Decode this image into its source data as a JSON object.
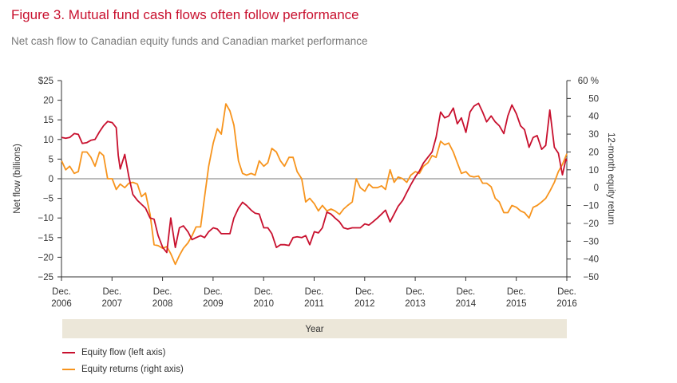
{
  "figure": {
    "title": "Figure 3. Mutual fund cash flows often follow performance",
    "subtitle": "Net cash flow to Canadian equity funds and Canadian market performance"
  },
  "colors": {
    "flow": "#c8102e",
    "returns": "#f7941d",
    "band": "#ece7d9",
    "axis": "#333333"
  },
  "chart_data": {
    "type": "line",
    "title": "Figure 3. Mutual fund cash flows often follow performance",
    "subtitle": "Net cash flow to Canadian equity funds and Canadian market performance",
    "xlabel": "Year",
    "ylabel": "Net flow (billions)",
    "y2label": "12-month equity return",
    "xlim": [
      2006.917,
      2016.917
    ],
    "ylim": [
      -25,
      25
    ],
    "y2lim": [
      -50,
      60
    ],
    "left_ticks": [
      -25,
      -20,
      -15,
      -10,
      -5,
      0,
      5,
      10,
      15,
      20,
      25
    ],
    "left_tick_labels": [
      "−25",
      "−20",
      "−15",
      "−10",
      "−5",
      "0",
      "5",
      "10",
      "15",
      "20",
      "$25"
    ],
    "right_ticks": [
      -50,
      -40,
      -30,
      -20,
      -10,
      0,
      10,
      20,
      30,
      40,
      50,
      60
    ],
    "right_tick_labels": [
      "−50",
      "−40",
      "−30",
      "−20",
      "−10",
      "0",
      "10",
      "20",
      "30",
      "40",
      "50",
      "60 %"
    ],
    "x_tick_labels": [
      {
        "month": "Dec.",
        "year": "2006"
      },
      {
        "month": "Dec.",
        "year": "2007"
      },
      {
        "month": "Dec.",
        "year": "2008"
      },
      {
        "month": "Dec.",
        "year": "2009"
      },
      {
        "month": "Dec.",
        "year": "2010"
      },
      {
        "month": "Dec.",
        "year": "2011"
      },
      {
        "month": "Dec.",
        "year": "2012"
      },
      {
        "month": "Dec.",
        "year": "2013"
      },
      {
        "month": "Dec.",
        "year": "2014"
      },
      {
        "month": "Dec.",
        "year": "2015"
      },
      {
        "month": "Dec.",
        "year": "2016"
      }
    ],
    "legend_position": "bottom-left",
    "series": [
      {
        "name": "Equity flow (left axis)",
        "axis": "left",
        "points": [
          [
            2006.92,
            10.5
          ],
          [
            2007.0,
            10.3
          ],
          [
            2007.08,
            10.5
          ],
          [
            2007.17,
            11.5
          ],
          [
            2007.25,
            11.3
          ],
          [
            2007.33,
            9.0
          ],
          [
            2007.42,
            9.2
          ],
          [
            2007.5,
            9.8
          ],
          [
            2007.58,
            10.0
          ],
          [
            2007.67,
            12.0
          ],
          [
            2007.75,
            13.5
          ],
          [
            2007.83,
            14.6
          ],
          [
            2007.92,
            14.3
          ],
          [
            2008.0,
            13.0
          ],
          [
            2008.04,
            6.0
          ],
          [
            2008.08,
            2.5
          ],
          [
            2008.17,
            6.2
          ],
          [
            2008.25,
            0.5
          ],
          [
            2008.33,
            -4.0
          ],
          [
            2008.42,
            -5.5
          ],
          [
            2008.5,
            -6.5
          ],
          [
            2008.58,
            -7.5
          ],
          [
            2008.67,
            -10.0
          ],
          [
            2008.75,
            -10.3
          ],
          [
            2008.83,
            -14.5
          ],
          [
            2008.92,
            -17.5
          ],
          [
            2009.0,
            -18.8
          ],
          [
            2009.08,
            -10.0
          ],
          [
            2009.17,
            -17.5
          ],
          [
            2009.25,
            -12.5
          ],
          [
            2009.33,
            -12.0
          ],
          [
            2009.42,
            -13.5
          ],
          [
            2009.5,
            -15.5
          ],
          [
            2009.58,
            -15.0
          ],
          [
            2009.67,
            -14.5
          ],
          [
            2009.75,
            -15.0
          ],
          [
            2009.83,
            -13.5
          ],
          [
            2009.92,
            -12.5
          ],
          [
            2010.0,
            -12.8
          ],
          [
            2010.08,
            -14.0
          ],
          [
            2010.17,
            -14.0
          ],
          [
            2010.25,
            -14.0
          ],
          [
            2010.33,
            -10.0
          ],
          [
            2010.42,
            -7.5
          ],
          [
            2010.5,
            -6.0
          ],
          [
            2010.58,
            -6.8
          ],
          [
            2010.67,
            -8.0
          ],
          [
            2010.75,
            -8.8
          ],
          [
            2010.83,
            -9.0
          ],
          [
            2010.92,
            -12.5
          ],
          [
            2011.0,
            -12.5
          ],
          [
            2011.08,
            -14.0
          ],
          [
            2011.17,
            -17.5
          ],
          [
            2011.25,
            -16.8
          ],
          [
            2011.33,
            -16.8
          ],
          [
            2011.42,
            -17.0
          ],
          [
            2011.5,
            -15.0
          ],
          [
            2011.58,
            -14.8
          ],
          [
            2011.67,
            -15.0
          ],
          [
            2011.75,
            -14.5
          ],
          [
            2011.83,
            -16.8
          ],
          [
            2011.92,
            -13.5
          ],
          [
            2012.0,
            -13.8
          ],
          [
            2012.08,
            -12.5
          ],
          [
            2012.17,
            -8.5
          ],
          [
            2012.25,
            -9.0
          ],
          [
            2012.33,
            -10.0
          ],
          [
            2012.42,
            -11.0
          ],
          [
            2012.5,
            -12.5
          ],
          [
            2012.58,
            -12.8
          ],
          [
            2012.67,
            -12.5
          ],
          [
            2012.75,
            -12.5
          ],
          [
            2012.83,
            -12.5
          ],
          [
            2012.92,
            -11.5
          ],
          [
            2013.0,
            -11.8
          ],
          [
            2013.08,
            -11.0
          ],
          [
            2013.17,
            -10.0
          ],
          [
            2013.25,
            -9.0
          ],
          [
            2013.33,
            -8.0
          ],
          [
            2013.42,
            -11.0
          ],
          [
            2013.5,
            -9.0
          ],
          [
            2013.58,
            -7.0
          ],
          [
            2013.67,
            -5.5
          ],
          [
            2013.75,
            -3.5
          ],
          [
            2013.83,
            -1.5
          ],
          [
            2013.92,
            0.5
          ],
          [
            2014.0,
            2.0
          ],
          [
            2014.08,
            4.0
          ],
          [
            2014.17,
            5.5
          ],
          [
            2014.25,
            6.8
          ],
          [
            2014.33,
            10.5
          ],
          [
            2014.42,
            17.0
          ],
          [
            2014.5,
            15.5
          ],
          [
            2014.58,
            16.0
          ],
          [
            2014.67,
            18.0
          ],
          [
            2014.75,
            14.0
          ],
          [
            2014.83,
            15.5
          ],
          [
            2014.92,
            11.8
          ],
          [
            2015.0,
            17.0
          ],
          [
            2015.08,
            18.5
          ],
          [
            2015.17,
            19.2
          ],
          [
            2015.25,
            17.0
          ],
          [
            2015.33,
            14.5
          ],
          [
            2015.42,
            16.0
          ],
          [
            2015.5,
            14.5
          ],
          [
            2015.58,
            13.5
          ],
          [
            2015.67,
            11.5
          ],
          [
            2015.75,
            16.0
          ],
          [
            2015.83,
            18.8
          ],
          [
            2015.92,
            16.5
          ],
          [
            2016.0,
            13.5
          ],
          [
            2016.08,
            12.5
          ],
          [
            2016.17,
            8.0
          ],
          [
            2016.25,
            10.5
          ],
          [
            2016.33,
            11.0
          ],
          [
            2016.42,
            7.5
          ],
          [
            2016.5,
            8.5
          ],
          [
            2016.58,
            17.5
          ],
          [
            2016.67,
            8.0
          ],
          [
            2016.75,
            6.5
          ],
          [
            2016.83,
            1.0
          ],
          [
            2016.9,
            5.0
          ],
          [
            2016.92,
            4.5
          ]
        ]
      },
      {
        "name": "Equity returns (right axis)",
        "axis": "right",
        "points": [
          [
            2006.92,
            15.0
          ],
          [
            2007.0,
            10.0
          ],
          [
            2007.08,
            12.0
          ],
          [
            2007.17,
            8.0
          ],
          [
            2007.25,
            9.0
          ],
          [
            2007.33,
            20.0
          ],
          [
            2007.42,
            20.0
          ],
          [
            2007.5,
            17.0
          ],
          [
            2007.58,
            12.0
          ],
          [
            2007.67,
            20.0
          ],
          [
            2007.75,
            18.0
          ],
          [
            2007.83,
            5.0
          ],
          [
            2007.92,
            5.0
          ],
          [
            2008.0,
            -1.0
          ],
          [
            2008.08,
            2.0
          ],
          [
            2008.17,
            0.0
          ],
          [
            2008.25,
            2.5
          ],
          [
            2008.33,
            3.0
          ],
          [
            2008.42,
            2.0
          ],
          [
            2008.5,
            -5.0
          ],
          [
            2008.58,
            -3.0
          ],
          [
            2008.67,
            -15.0
          ],
          [
            2008.75,
            -32.0
          ],
          [
            2008.83,
            -32.5
          ],
          [
            2008.92,
            -34.0
          ],
          [
            2009.0,
            -33.0
          ],
          [
            2009.08,
            -37.0
          ],
          [
            2009.17,
            -43.0
          ],
          [
            2009.25,
            -38.0
          ],
          [
            2009.33,
            -34.0
          ],
          [
            2009.42,
            -31.0
          ],
          [
            2009.5,
            -27.0
          ],
          [
            2009.58,
            -22.0
          ],
          [
            2009.67,
            -22.0
          ],
          [
            2009.75,
            -5.0
          ],
          [
            2009.83,
            12.0
          ],
          [
            2009.92,
            25.0
          ],
          [
            2010.0,
            33.0
          ],
          [
            2010.08,
            30.0
          ],
          [
            2010.17,
            47.0
          ],
          [
            2010.25,
            43.0
          ],
          [
            2010.33,
            35.0
          ],
          [
            2010.42,
            15.0
          ],
          [
            2010.5,
            8.0
          ],
          [
            2010.58,
            7.0
          ],
          [
            2010.67,
            8.0
          ],
          [
            2010.75,
            7.0
          ],
          [
            2010.83,
            15.0
          ],
          [
            2010.92,
            12.0
          ],
          [
            2011.0,
            14.0
          ],
          [
            2011.08,
            22.0
          ],
          [
            2011.17,
            20.0
          ],
          [
            2011.25,
            15.0
          ],
          [
            2011.33,
            12.0
          ],
          [
            2011.42,
            17.0
          ],
          [
            2011.5,
            17.0
          ],
          [
            2011.58,
            9.0
          ],
          [
            2011.67,
            5.0
          ],
          [
            2011.75,
            -8.0
          ],
          [
            2011.83,
            -6.0
          ],
          [
            2011.92,
            -9.0
          ],
          [
            2012.0,
            -13.0
          ],
          [
            2012.08,
            -10.0
          ],
          [
            2012.17,
            -13.0
          ],
          [
            2012.25,
            -12.0
          ],
          [
            2012.33,
            -13.0
          ],
          [
            2012.42,
            -15.0
          ],
          [
            2012.5,
            -12.0
          ],
          [
            2012.58,
            -10.0
          ],
          [
            2012.67,
            -8.0
          ],
          [
            2012.75,
            5.0
          ],
          [
            2012.83,
            0.0
          ],
          [
            2012.92,
            -2.0
          ],
          [
            2013.0,
            2.0
          ],
          [
            2013.08,
            0.0
          ],
          [
            2013.17,
            0.0
          ],
          [
            2013.25,
            1.0
          ],
          [
            2013.33,
            -1.0
          ],
          [
            2013.42,
            10.0
          ],
          [
            2013.5,
            3.0
          ],
          [
            2013.58,
            6.0
          ],
          [
            2013.67,
            5.0
          ],
          [
            2013.75,
            3.0
          ],
          [
            2013.83,
            7.0
          ],
          [
            2013.92,
            9.0
          ],
          [
            2014.0,
            8.0
          ],
          [
            2014.08,
            12.0
          ],
          [
            2014.17,
            14.0
          ],
          [
            2014.25,
            18.0
          ],
          [
            2014.33,
            17.0
          ],
          [
            2014.42,
            26.0
          ],
          [
            2014.5,
            24.0
          ],
          [
            2014.58,
            25.0
          ],
          [
            2014.67,
            20.0
          ],
          [
            2014.75,
            14.0
          ],
          [
            2014.83,
            8.0
          ],
          [
            2014.92,
            9.0
          ],
          [
            2015.0,
            6.5
          ],
          [
            2015.08,
            6.0
          ],
          [
            2015.17,
            6.5
          ],
          [
            2015.25,
            2.5
          ],
          [
            2015.33,
            2.5
          ],
          [
            2015.42,
            0.5
          ],
          [
            2015.5,
            -6.0
          ],
          [
            2015.58,
            -8.0
          ],
          [
            2015.67,
            -14.0
          ],
          [
            2015.75,
            -14.0
          ],
          [
            2015.83,
            -10.0
          ],
          [
            2015.92,
            -11.0
          ],
          [
            2016.0,
            -13.0
          ],
          [
            2016.08,
            -14.0
          ],
          [
            2016.17,
            -17.0
          ],
          [
            2016.25,
            -11.0
          ],
          [
            2016.33,
            -10.0
          ],
          [
            2016.42,
            -8.0
          ],
          [
            2016.5,
            -6.0
          ],
          [
            2016.58,
            -2.0
          ],
          [
            2016.67,
            3.0
          ],
          [
            2016.75,
            9.0
          ],
          [
            2016.83,
            13.0
          ],
          [
            2016.92,
            19.0
          ]
        ]
      }
    ]
  }
}
